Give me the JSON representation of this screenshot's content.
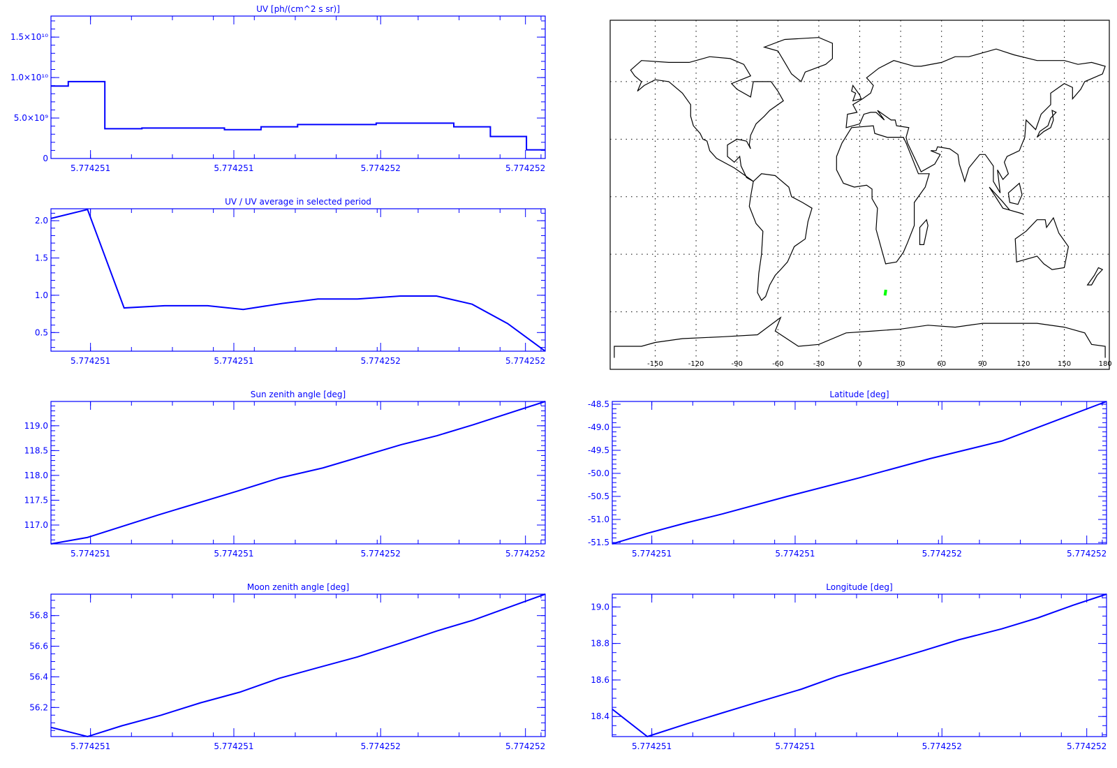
{
  "colors": {
    "axis": "#0000ff",
    "series": "#0000ff",
    "map": "#000000",
    "track": "#00ff00"
  },
  "chart_data": [
    {
      "id": "uv",
      "type": "line",
      "step": true,
      "title": "UV [ph/(cm^2 s sr)]",
      "xlabel": "",
      "ylabel": "",
      "xlim": [
        0,
        1
      ],
      "xticks": [
        0.08,
        0.37,
        0.667,
        0.96
      ],
      "xtick_labels": [
        "5.774251",
        "5.774251",
        "5.774252",
        "5.774252"
      ],
      "ylim": [
        0,
        17600000000.0
      ],
      "yticks": [
        0,
        5000000000.0,
        10000000000.0,
        15000000000.0
      ],
      "ytick_labels": [
        "0",
        "5.0×10⁹",
        "1.0×10¹⁰",
        "1.5×10¹⁰"
      ],
      "yminor": 1000000000.0,
      "x": [
        0,
        0.035,
        0.109,
        0.184,
        0.351,
        0.425,
        0.499,
        0.658,
        0.815,
        0.889,
        0.962,
        1.0
      ],
      "y": [
        8950000000.0,
        9500000000.0,
        3680000000.0,
        3760000000.0,
        3560000000.0,
        3910000000.0,
        4200000000.0,
        4370000000.0,
        3910000000.0,
        2720000000.0,
        1070000000.0,
        1070000000.0
      ]
    },
    {
      "id": "ratio",
      "type": "line",
      "title": "UV / UV average in selected period",
      "xlim": [
        0,
        1
      ],
      "xticks": [
        0.08,
        0.37,
        0.667,
        0.96
      ],
      "xtick_labels": [
        "5.774251",
        "5.774251",
        "5.774252",
        "5.774252"
      ],
      "ylim": [
        0.25,
        2.16
      ],
      "yticks": [
        0.5,
        1.0,
        1.5,
        2.0
      ],
      "ytick_labels": [
        "0.5",
        "1.0",
        "1.5",
        "2.0"
      ],
      "yminor": 0.1,
      "x": [
        0,
        0.074,
        0.148,
        0.23,
        0.317,
        0.389,
        0.468,
        0.54,
        0.62,
        0.707,
        0.78,
        0.852,
        0.924,
        1.0
      ],
      "y": [
        2.03,
        2.15,
        0.83,
        0.86,
        0.86,
        0.81,
        0.89,
        0.95,
        0.95,
        0.99,
        0.99,
        0.88,
        0.62,
        0.25
      ]
    },
    {
      "id": "sun",
      "type": "line",
      "title": "Sun zenith angle [deg]",
      "xlim": [
        0,
        1
      ],
      "xticks": [
        0.08,
        0.37,
        0.667,
        0.96
      ],
      "xtick_labels": [
        "5.774251",
        "5.774251",
        "5.774252",
        "5.774252"
      ],
      "ylim": [
        116.62,
        119.49
      ],
      "yticks": [
        117.0,
        117.5,
        118.0,
        118.5,
        119.0
      ],
      "ytick_labels": [
        "117.0",
        "117.5",
        "118.0",
        "118.5",
        "119.0"
      ],
      "yminor": 0.1,
      "x": [
        0,
        0.074,
        0.216,
        0.376,
        0.463,
        0.55,
        0.709,
        0.781,
        0.854,
        1.0
      ],
      "y": [
        116.62,
        116.75,
        117.2,
        117.68,
        117.95,
        118.15,
        118.62,
        118.8,
        119.02,
        119.49
      ]
    },
    {
      "id": "lat",
      "type": "line",
      "title": "Latitude [deg]",
      "xlim": [
        0,
        1
      ],
      "xticks": [
        0.08,
        0.37,
        0.667,
        0.96
      ],
      "xtick_labels": [
        "5.774251",
        "5.774251",
        "5.774252",
        "5.774252"
      ],
      "ylim": [
        -51.53,
        -48.44
      ],
      "yticks": [
        -51.5,
        -51.0,
        -50.5,
        -50.0,
        -49.5,
        -49.0,
        -48.5
      ],
      "ytick_labels": [
        "-51.5",
        "-51.0",
        "-50.5",
        "-50.0",
        "-49.5",
        "-49.0",
        "-48.5"
      ],
      "yminor": 0.1,
      "x": [
        0,
        0.071,
        0.151,
        0.223,
        0.354,
        0.499,
        0.643,
        0.788,
        1.0
      ],
      "y": [
        -51.53,
        -51.3,
        -51.07,
        -50.88,
        -50.5,
        -50.1,
        -49.68,
        -49.3,
        -48.44
      ]
    },
    {
      "id": "moon",
      "type": "line",
      "title": "Moon zenith angle [deg]",
      "xlim": [
        0,
        1
      ],
      "xticks": [
        0.08,
        0.37,
        0.667,
        0.96
      ],
      "xtick_labels": [
        "5.774251",
        "5.774251",
        "5.774252",
        "5.774252"
      ],
      "ylim": [
        56.01,
        56.94
      ],
      "yticks": [
        56.2,
        56.4,
        56.6,
        56.8
      ],
      "ytick_labels": [
        "56.2",
        "56.4",
        "56.6",
        "56.8"
      ],
      "yminor": 0.05,
      "x": [
        0,
        0.074,
        0.143,
        0.223,
        0.302,
        0.382,
        0.461,
        0.54,
        0.62,
        0.707,
        0.781,
        0.854,
        1.0
      ],
      "y": [
        56.07,
        56.01,
        56.08,
        56.15,
        56.23,
        56.3,
        56.39,
        56.46,
        56.53,
        56.62,
        56.7,
        56.77,
        56.94
      ]
    },
    {
      "id": "lon",
      "type": "line",
      "title": "Longitude [deg]",
      "xlim": [
        0,
        1
      ],
      "xticks": [
        0.08,
        0.37,
        0.667,
        0.96
      ],
      "xtick_labels": [
        "5.774251",
        "5.774251",
        "5.774252",
        "5.774252"
      ],
      "ylim": [
        18.29,
        19.07
      ],
      "yticks": [
        18.4,
        18.6,
        18.8,
        19.0
      ],
      "ytick_labels": [
        "18.4",
        "18.6",
        "18.8",
        "19.0"
      ],
      "yminor": 0.05,
      "x": [
        0,
        0.071,
        0.151,
        0.223,
        0.296,
        0.383,
        0.455,
        0.542,
        0.629,
        0.701,
        0.788,
        0.861,
        0.933,
        1.0
      ],
      "y": [
        18.44,
        18.29,
        18.36,
        18.42,
        18.48,
        18.55,
        18.62,
        18.69,
        18.76,
        18.82,
        18.88,
        18.94,
        19.01,
        19.07
      ]
    }
  ],
  "map": {
    "lon_range": [
      -183,
      183
    ],
    "lat_range": [
      -90,
      92
    ],
    "lon_gridlines": [
      -150,
      -120,
      -90,
      -60,
      -30,
      0,
      30,
      60,
      90,
      120,
      150
    ],
    "lat_gridlines": [
      -60,
      -30,
      0,
      30,
      60
    ],
    "lon_labels": [
      "-150",
      "-120",
      "-90",
      "-60",
      "-30",
      "0",
      "30",
      "60",
      "90",
      "120",
      "150",
      "180"
    ],
    "lon_label_values": [
      -150,
      -120,
      -90,
      -60,
      -30,
      0,
      30,
      60,
      90,
      120,
      150,
      180
    ],
    "track": {
      "lon": [
        18.5,
        18.6,
        18.8,
        19.0,
        19.07
      ],
      "lat": [
        -51.5,
        -51.0,
        -50.2,
        -49.2,
        -48.5
      ]
    }
  }
}
